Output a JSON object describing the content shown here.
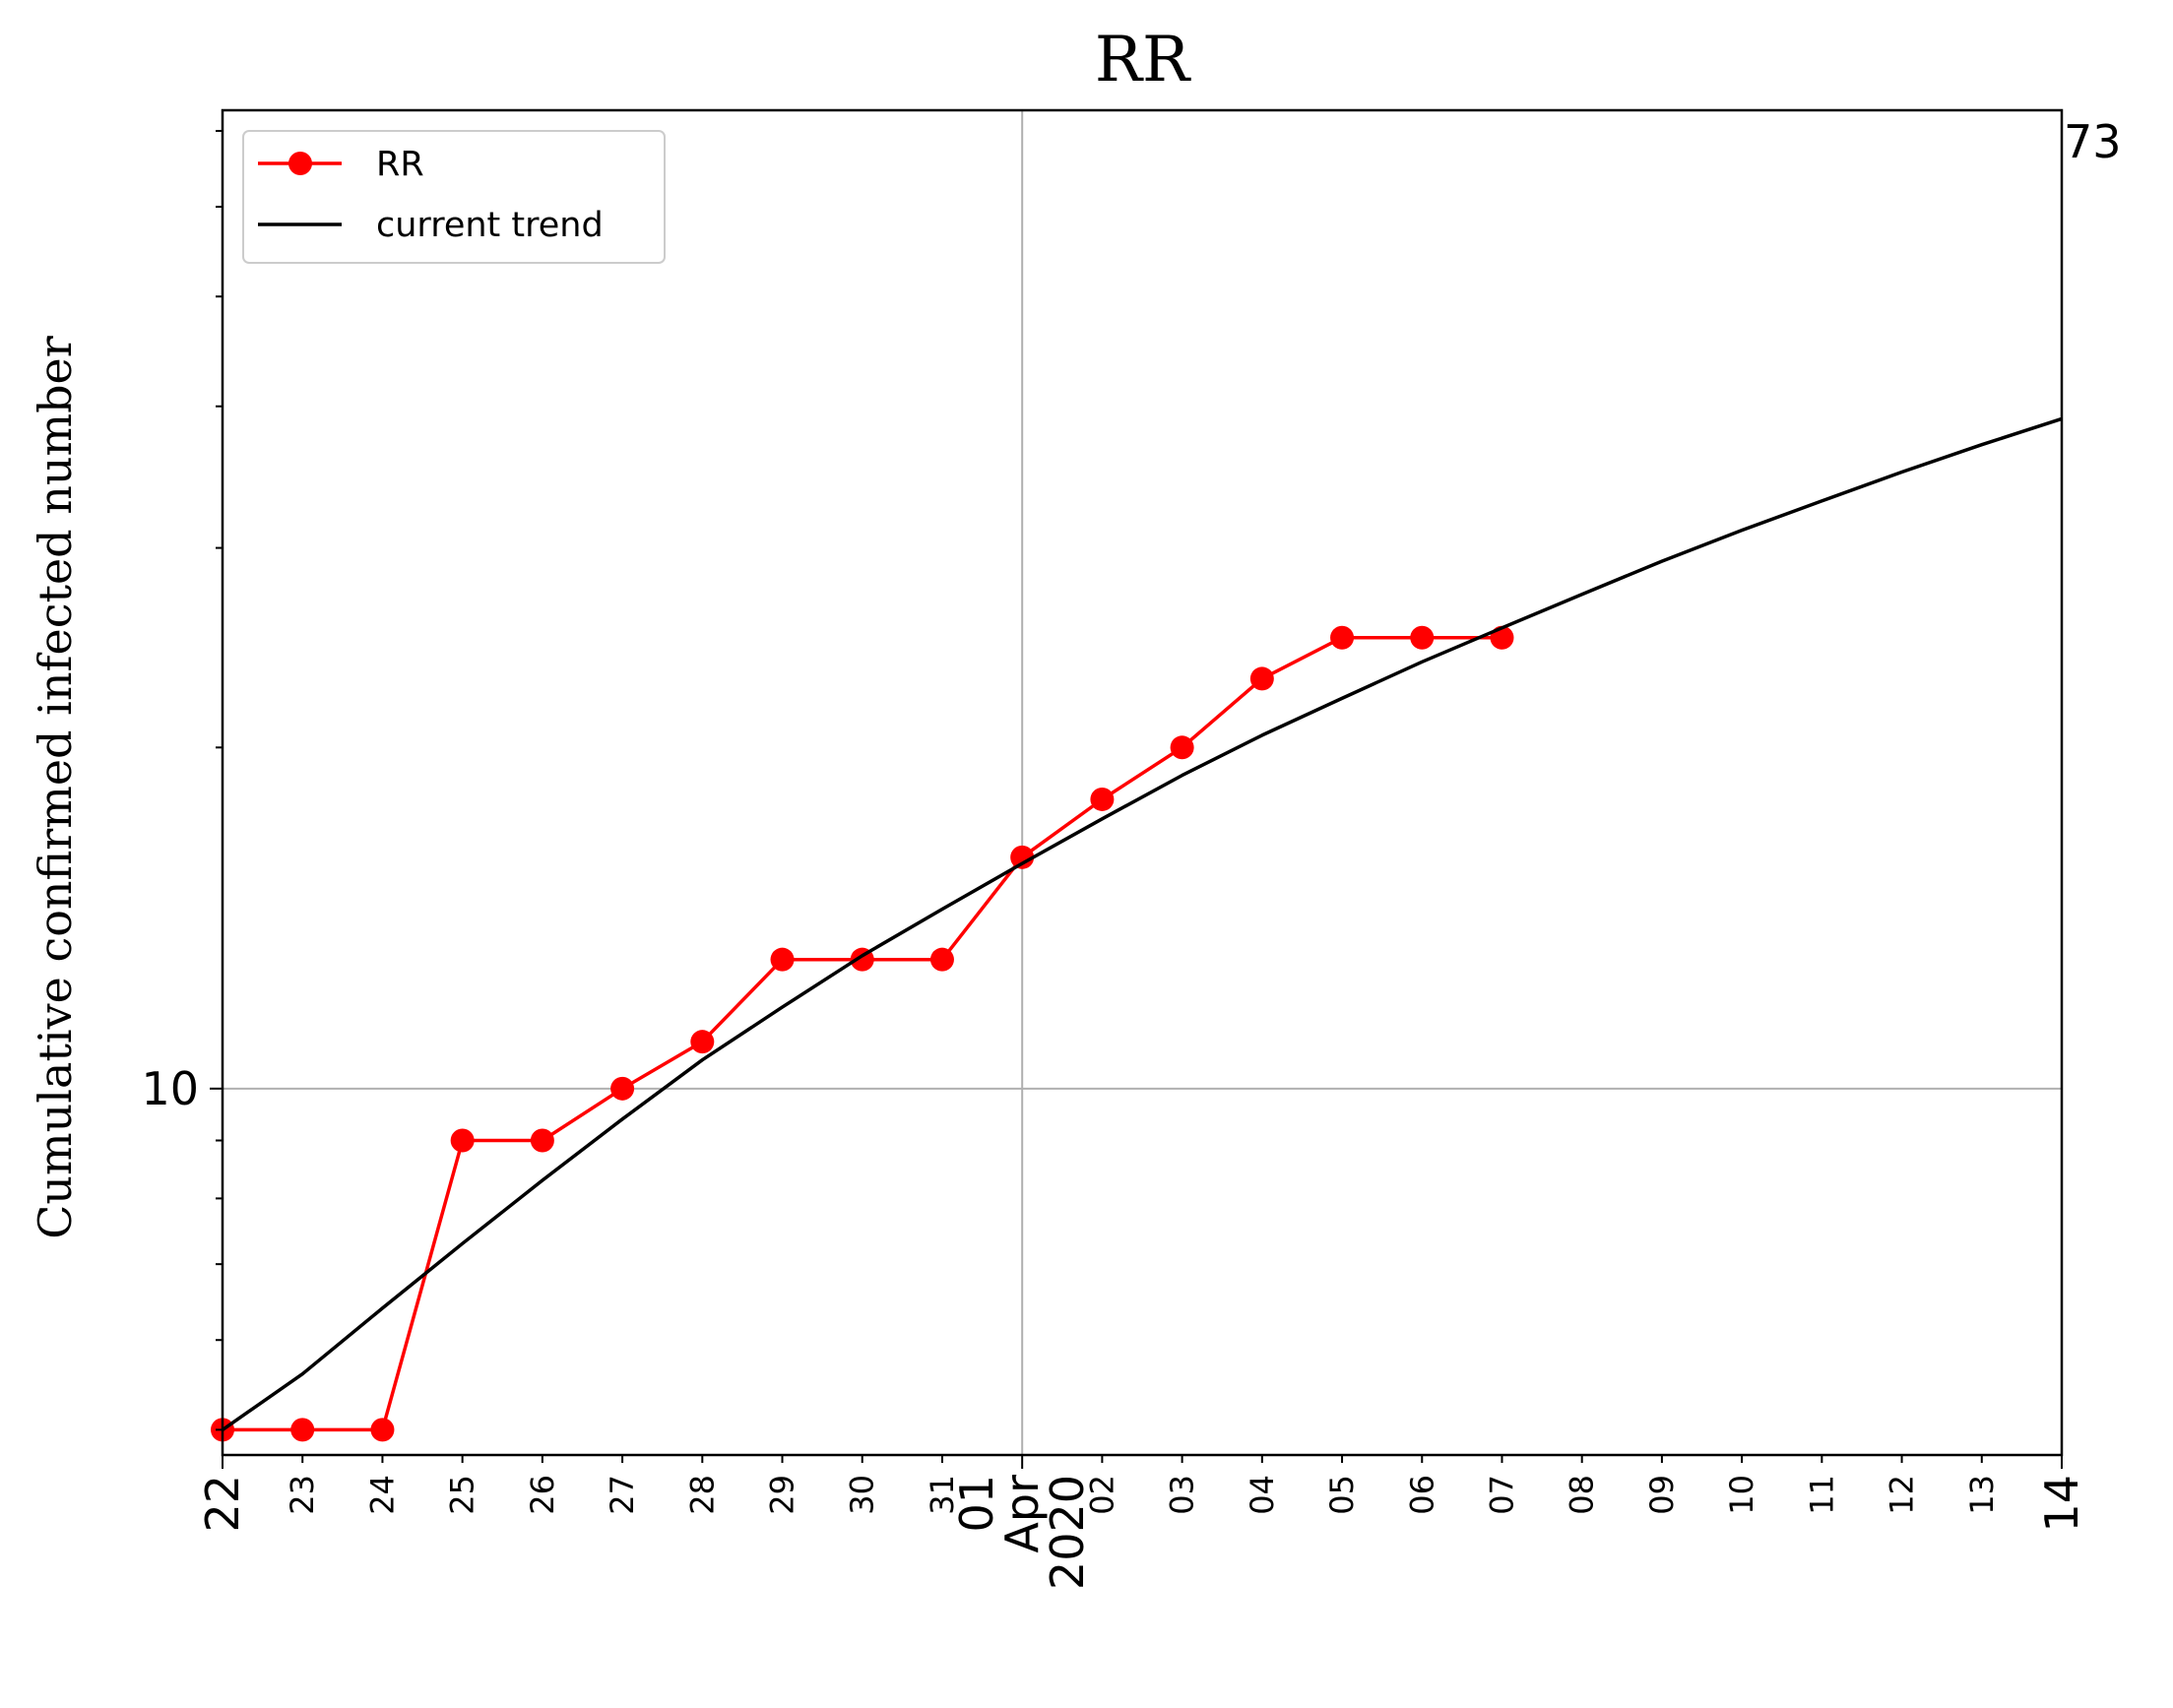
{
  "chart_data": {
    "type": "line",
    "title": "RR",
    "ylabel": "Cumulative confirmed infected number",
    "xlabel": "",
    "yscale": "log",
    "ylim": [
      4.75,
      73
    ],
    "xlim": [
      "2020-03-22",
      "2020-04-14"
    ],
    "grid": true,
    "legend_position": "top-left",
    "x_tick_labels": [
      "22",
      "23",
      "24",
      "25",
      "26",
      "27",
      "28",
      "29",
      "30",
      "31",
      "01\nApr\n2020",
      "02",
      "03",
      "04",
      "05",
      "06",
      "07",
      "08",
      "09",
      "10",
      "11",
      "12",
      "13",
      "14"
    ],
    "y_tick_labels": [
      "10"
    ],
    "end_label": "73",
    "series": [
      {
        "name": "RR",
        "color": "#ff0000",
        "marker": "circle",
        "x": [
          "2020-03-22",
          "2020-03-23",
          "2020-03-24",
          "2020-03-25",
          "2020-03-26",
          "2020-03-27",
          "2020-03-28",
          "2020-03-29",
          "2020-03-30",
          "2020-03-31",
          "2020-04-01",
          "2020-04-02",
          "2020-04-03",
          "2020-04-04",
          "2020-04-05",
          "2020-04-06",
          "2020-04-07"
        ],
        "values": [
          5,
          5,
          5,
          9,
          9,
          10,
          11,
          13,
          13,
          13,
          16,
          18,
          20,
          23,
          25,
          25,
          25
        ]
      },
      {
        "name": "current trend",
        "color": "#000000",
        "marker": "none",
        "x": [
          "2020-03-22",
          "2020-03-23",
          "2020-03-24",
          "2020-03-25",
          "2020-03-26",
          "2020-03-27",
          "2020-03-28",
          "2020-03-29",
          "2020-03-30",
          "2020-03-31",
          "2020-04-01",
          "2020-04-02",
          "2020-04-03",
          "2020-04-04",
          "2020-04-05",
          "2020-04-06",
          "2020-04-07",
          "2020-04-08",
          "2020-04-09",
          "2020-04-10",
          "2020-04-11",
          "2020-04-12",
          "2020-04-13",
          "2020-04-14"
        ],
        "values": [
          5.0,
          5.6,
          6.4,
          7.3,
          8.3,
          9.4,
          10.6,
          11.8,
          13.1,
          14.4,
          15.8,
          17.3,
          18.9,
          20.5,
          22.1,
          23.8,
          25.5,
          27.3,
          29.2,
          31.1,
          33.0,
          35.0,
          37.0,
          39.0
        ]
      }
    ]
  }
}
